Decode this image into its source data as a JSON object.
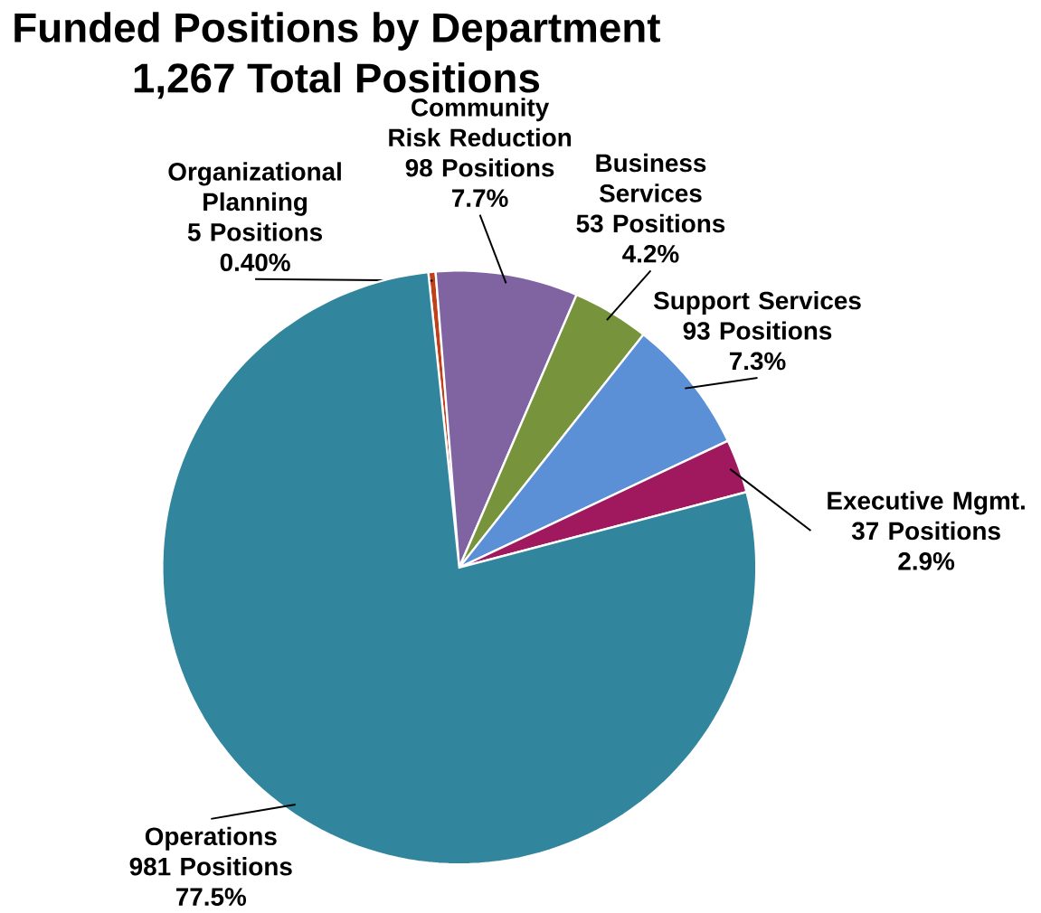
{
  "chart_data": {
    "type": "pie",
    "title": "Funded Positions by Department",
    "subtitle": "1,267 Total Positions",
    "categories": [
      "Organizational Planning",
      "Community Risk Reduction",
      "Business Services",
      "Support Services",
      "Executive Mgmt.",
      "Operations"
    ],
    "values": [
      5,
      98,
      53,
      93,
      37,
      981
    ],
    "colors": [
      "#c0401a",
      "#8064a2",
      "#77933c",
      "#5b8fd6",
      "#a0195f",
      "#31859c"
    ],
    "value_labels": [
      "5 Positions 0.40%",
      "98 Positions 7.7%",
      "53 Positions 4.2%",
      "93 Positions 7.3%",
      "37 Positions 2.9%",
      "981 Positions 77.5%"
    ]
  }
}
